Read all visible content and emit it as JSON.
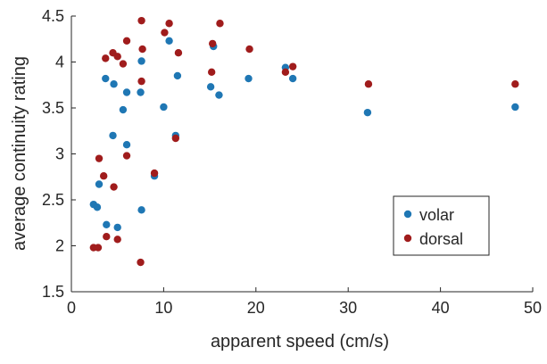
{
  "chart_data": {
    "type": "scatter",
    "xlabel": "apparent speed (cm/s)",
    "ylabel": "average continuity rating",
    "xlim": [
      0,
      50
    ],
    "ylim": [
      1.5,
      4.5
    ],
    "xticks": [
      0,
      10,
      20,
      30,
      40,
      50
    ],
    "yticks": [
      1.5,
      2,
      2.5,
      3,
      3.5,
      4,
      4.5
    ],
    "xtick_labels": [
      "0",
      "10",
      "20",
      "30",
      "40",
      "50"
    ],
    "ytick_labels": [
      "1.5",
      "2",
      "2.5",
      "3",
      "3.5",
      "4",
      "4.5"
    ],
    "grid": false,
    "legend_position": "right-lower",
    "series": [
      {
        "name": "volar",
        "color": "#1f77b4",
        "points": [
          [
            2.4,
            2.45
          ],
          [
            2.8,
            2.42
          ],
          [
            3.0,
            2.67
          ],
          [
            3.7,
            3.82
          ],
          [
            3.8,
            2.23
          ],
          [
            4.5,
            3.2
          ],
          [
            4.6,
            3.76
          ],
          [
            5.0,
            2.2
          ],
          [
            5.6,
            3.48
          ],
          [
            6.0,
            3.67
          ],
          [
            6.0,
            3.1
          ],
          [
            7.5,
            3.67
          ],
          [
            7.6,
            4.01
          ],
          [
            7.6,
            2.39
          ],
          [
            9.0,
            2.76
          ],
          [
            10.0,
            3.51
          ],
          [
            10.6,
            4.23
          ],
          [
            11.3,
            3.2
          ],
          [
            11.5,
            3.85
          ],
          [
            15.1,
            3.73
          ],
          [
            15.4,
            4.17
          ],
          [
            16.0,
            3.64
          ],
          [
            19.2,
            3.82
          ],
          [
            23.2,
            3.94
          ],
          [
            24.0,
            3.82
          ],
          [
            32.1,
            3.45
          ],
          [
            48.1,
            3.51
          ]
        ]
      },
      {
        "name": "dorsal",
        "color": "#a01c1c",
        "points": [
          [
            2.4,
            1.98
          ],
          [
            2.9,
            1.98
          ],
          [
            3.0,
            2.95
          ],
          [
            3.5,
            2.76
          ],
          [
            3.7,
            4.04
          ],
          [
            3.8,
            2.1
          ],
          [
            4.5,
            4.1
          ],
          [
            4.6,
            2.64
          ],
          [
            5.0,
            2.07
          ],
          [
            5.0,
            4.06
          ],
          [
            5.6,
            3.98
          ],
          [
            6.0,
            2.98
          ],
          [
            6.0,
            4.23
          ],
          [
            7.5,
            1.82
          ],
          [
            7.6,
            3.79
          ],
          [
            7.6,
            4.45
          ],
          [
            7.7,
            4.14
          ],
          [
            9.0,
            2.79
          ],
          [
            10.1,
            4.32
          ],
          [
            10.6,
            4.42
          ],
          [
            11.3,
            3.17
          ],
          [
            11.6,
            4.1
          ],
          [
            15.2,
            3.89
          ],
          [
            15.3,
            4.2
          ],
          [
            16.1,
            4.42
          ],
          [
            19.3,
            4.14
          ],
          [
            23.2,
            3.89
          ],
          [
            24.0,
            3.95
          ],
          [
            32.2,
            3.76
          ],
          [
            48.1,
            3.76
          ]
        ]
      }
    ]
  }
}
